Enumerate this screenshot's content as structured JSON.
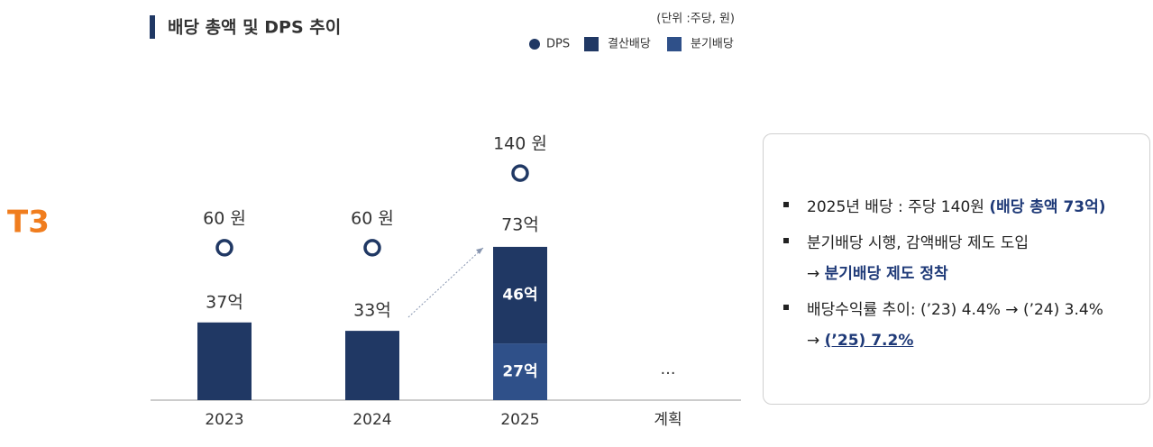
{
  "logo": "T3",
  "chart_data": {
    "type": "stacked-bar",
    "title": "배당 총액 및 DPS 추이",
    "unit_note": "(단위 :주당, 원)",
    "categories": [
      "2023",
      "2024",
      "2025",
      "계획"
    ],
    "series": [
      {
        "name": "결산배당",
        "color": "#203864",
        "values": [
          37,
          33,
          46,
          null
        ],
        "value_labels": [
          "37억",
          "33억",
          "46억",
          null
        ]
      },
      {
        "name": "분기배당",
        "color": "#2f5089",
        "values": [
          null,
          null,
          27,
          null
        ],
        "value_labels": [
          null,
          null,
          "27억",
          null
        ]
      }
    ],
    "totals": {
      "values": [
        null,
        null,
        73,
        null
      ],
      "value_labels": [
        null,
        null,
        "73억",
        null
      ]
    },
    "dps": {
      "name": "DPS",
      "color": "#203864",
      "values": [
        60,
        60,
        140,
        null
      ],
      "value_labels": [
        "60 원",
        "60 원",
        "140 원",
        null
      ]
    },
    "plan_note": "…"
  },
  "panel": {
    "bullets": [
      {
        "lines": [
          [
            {
              "text": "2025년 배당 : 주당 140원 ",
              "style": "plain"
            },
            {
              "text": "(배당 총액 73억)",
              "style": "bold"
            }
          ]
        ]
      },
      {
        "lines": [
          [
            {
              "text": "분기배당 시행, 감액배당 제도 도입",
              "style": "plain"
            }
          ],
          [
            {
              "text": "→ ",
              "style": "plain"
            },
            {
              "text": "분기배당 제도 정착",
              "style": "bold"
            }
          ]
        ]
      },
      {
        "lines": [
          [
            {
              "text": "배당수익률  추이: (’23) 4.4% → (’24) 3.4%",
              "style": "plain"
            }
          ],
          [
            {
              "text": "→ ",
              "style": "plain"
            },
            {
              "text": "(’25) 7.2%",
              "style": "bold-underline"
            }
          ]
        ]
      }
    ]
  }
}
